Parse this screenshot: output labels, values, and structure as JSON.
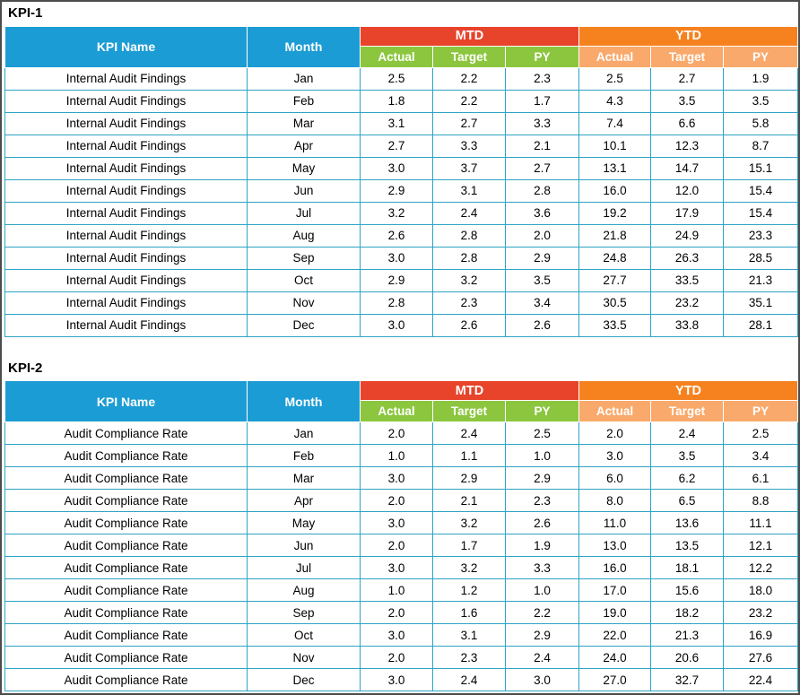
{
  "colors": {
    "blue": "#1b9cd4",
    "red": "#e8432b",
    "green": "#8cc63f",
    "orange": "#f6821f",
    "light_orange": "#f9a96b",
    "cell_border": "#2ea3c4",
    "frame_border": "#4c4c4c"
  },
  "chart_data": [
    {
      "type": "table",
      "title": "KPI-1",
      "kpi_name": "Internal Audit Findings",
      "header_kpi": "KPI Name",
      "header_month": "Month",
      "column_groups": [
        {
          "label": "MTD",
          "columns": [
            "Actual",
            "Target",
            "PY"
          ]
        },
        {
          "label": "YTD",
          "columns": [
            "Actual",
            "Target",
            "PY"
          ]
        }
      ],
      "months": [
        "Jan",
        "Feb",
        "Mar",
        "Apr",
        "May",
        "Jun",
        "Jul",
        "Aug",
        "Sep",
        "Oct",
        "Nov",
        "Dec"
      ],
      "mtd_actual": [
        2.5,
        1.8,
        3.1,
        2.7,
        3.0,
        2.9,
        3.2,
        2.6,
        3.0,
        2.9,
        2.8,
        3.0
      ],
      "mtd_target": [
        2.2,
        2.2,
        2.7,
        3.3,
        3.7,
        3.1,
        2.4,
        2.8,
        2.8,
        3.2,
        2.3,
        2.6
      ],
      "mtd_py": [
        2.3,
        1.7,
        3.3,
        2.1,
        2.7,
        2.8,
        3.6,
        2.0,
        2.9,
        3.5,
        3.4,
        2.6
      ],
      "ytd_actual": [
        2.5,
        4.3,
        7.4,
        10.1,
        13.1,
        16.0,
        19.2,
        21.8,
        24.8,
        27.7,
        30.5,
        33.5
      ],
      "ytd_target": [
        2.7,
        3.5,
        6.6,
        12.3,
        14.7,
        12.0,
        17.9,
        24.9,
        26.3,
        33.5,
        23.2,
        33.8
      ],
      "ytd_py": [
        1.9,
        3.5,
        5.8,
        8.7,
        15.1,
        15.4,
        15.4,
        23.3,
        28.5,
        21.3,
        35.1,
        28.1
      ]
    },
    {
      "type": "table",
      "title": "KPI-2",
      "kpi_name": "Audit Compliance Rate",
      "header_kpi": "KPI Name",
      "header_month": "Month",
      "column_groups": [
        {
          "label": "MTD",
          "columns": [
            "Actual",
            "Target",
            "PY"
          ]
        },
        {
          "label": "YTD",
          "columns": [
            "Actual",
            "Target",
            "PY"
          ]
        }
      ],
      "months": [
        "Jan",
        "Feb",
        "Mar",
        "Apr",
        "May",
        "Jun",
        "Jul",
        "Aug",
        "Sep",
        "Oct",
        "Nov",
        "Dec"
      ],
      "mtd_actual": [
        2.0,
        1.0,
        3.0,
        2.0,
        3.0,
        2.0,
        3.0,
        1.0,
        2.0,
        3.0,
        2.0,
        3.0
      ],
      "mtd_target": [
        2.4,
        1.1,
        2.9,
        2.1,
        3.2,
        1.7,
        3.2,
        1.2,
        1.6,
        3.1,
        2.3,
        2.4
      ],
      "mtd_py": [
        2.5,
        1.0,
        2.9,
        2.3,
        2.6,
        1.9,
        3.3,
        1.0,
        2.2,
        2.9,
        2.4,
        3.0
      ],
      "ytd_actual": [
        2.0,
        3.0,
        6.0,
        8.0,
        11.0,
        13.0,
        16.0,
        17.0,
        19.0,
        22.0,
        24.0,
        27.0
      ],
      "ytd_target": [
        2.4,
        3.5,
        6.2,
        6.5,
        13.6,
        13.5,
        18.1,
        15.6,
        18.2,
        21.3,
        20.6,
        32.7
      ],
      "ytd_py": [
        2.5,
        3.4,
        6.1,
        8.8,
        11.1,
        12.1,
        12.2,
        18.0,
        23.2,
        16.9,
        27.6,
        22.4
      ]
    }
  ]
}
